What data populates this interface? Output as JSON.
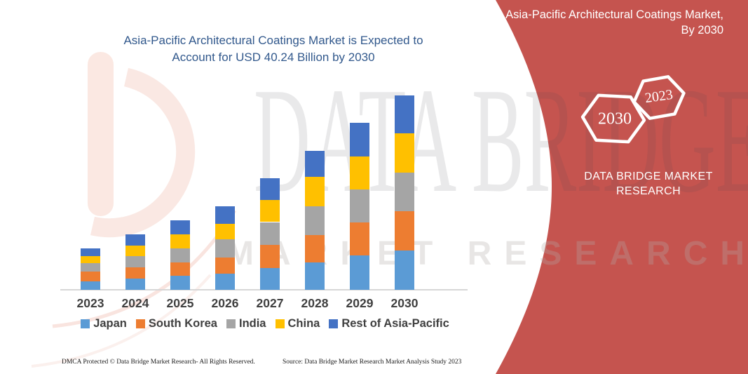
{
  "title": {
    "line1": "Asia-Pacific Architectural Coatings Market is Expected to",
    "line2": "Account for USD 40.24 Billion by 2030"
  },
  "side_panel": {
    "heading": "Asia-Pacific Architectural Coatings Market, By 2030",
    "hexagons": [
      {
        "label": "2030"
      },
      {
        "label": "2023"
      }
    ],
    "brand": "DATA BRIDGE MARKET RESEARCH",
    "background_color": "#C5544F"
  },
  "watermark": {
    "line1": "DATA BRIDGE",
    "line2": "MARKET RESEARCH"
  },
  "footer": {
    "left": "DMCA Protected © Data Bridge Market Research-  All Rights Reserved.",
    "right": "Source: Data Bridge Market Research  Market Analysis Study 2023"
  },
  "chart_data": {
    "type": "bar",
    "stacked": true,
    "title": "Asia-Pacific Architectural Coatings Market is Expected to Account for USD 40.24 Billion by 2030",
    "unit": "USD Billion",
    "highlight_value": "USD 40.24 Billion by 2030",
    "categories": [
      "2023",
      "2024",
      "2025",
      "2026",
      "2027",
      "2028",
      "2029",
      "2030"
    ],
    "totals": [
      8.6,
      11.5,
      14.4,
      17.2,
      23.1,
      28.7,
      34.5,
      40.24
    ],
    "series": [
      {
        "name": "Japan",
        "color": "#5B9BD5",
        "values": [
          1.8,
          2.3,
          2.9,
          3.3,
          4.5,
          5.7,
          7.1,
          8.1
        ]
      },
      {
        "name": "South Korea",
        "color": "#ED7D31",
        "values": [
          1.9,
          2.3,
          2.8,
          3.4,
          4.8,
          5.6,
          6.8,
          8.2
        ]
      },
      {
        "name": "India",
        "color": "#A5A5A5",
        "values": [
          1.8,
          2.3,
          2.8,
          3.8,
          4.7,
          6.0,
          6.9,
          8.0
        ]
      },
      {
        "name": "China",
        "color": "#FFC000",
        "values": [
          1.4,
          2.3,
          2.9,
          3.2,
          4.5,
          6.1,
          6.7,
          8.0
        ]
      },
      {
        "name": "Rest of Asia-Pacific",
        "color": "#4472C4",
        "values": [
          1.7,
          2.3,
          3.0,
          3.5,
          4.6,
          5.3,
          7.0,
          7.94
        ]
      }
    ],
    "legend_position": "bottom",
    "axis": {
      "x_labels_visible": true,
      "y_axis_visible": false,
      "gridlines": false
    }
  }
}
